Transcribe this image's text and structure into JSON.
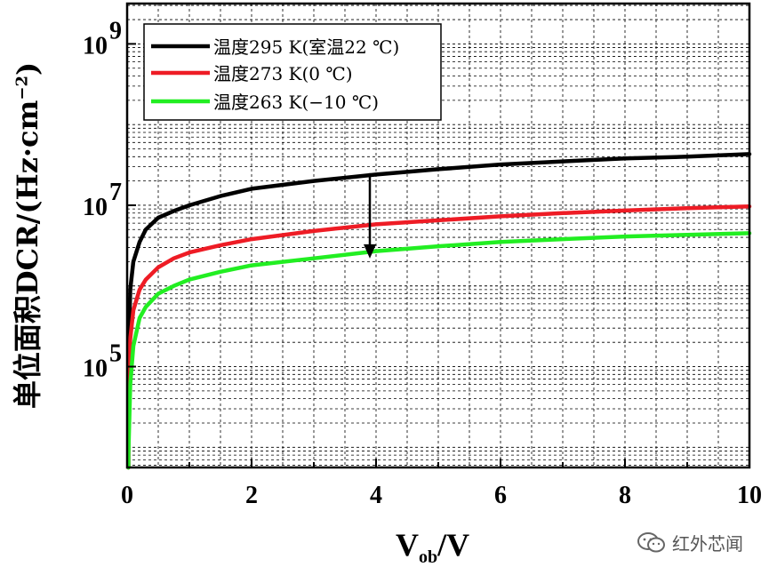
{
  "chart_data": {
    "type": "line",
    "xlabel_main": "V",
    "xlabel_sub": "ob",
    "xlabel_tail": "/V",
    "ylabel_main": "单位面积DCR/(Hz·cm",
    "ylabel_sup": "−2",
    "ylabel_tail": ")",
    "xlim": [
      0,
      10
    ],
    "ylim_log10": [
      3.75,
      9.5
    ],
    "x_ticks": [
      0,
      2,
      4,
      6,
      8,
      10
    ],
    "x_tick_labels": [
      "0",
      "2",
      "4",
      "6",
      "8",
      "10"
    ],
    "y_ticks": [
      {
        "base": "10",
        "exp": "5",
        "value": 100000
      },
      {
        "base": "10",
        "exp": "7",
        "value": 10000000
      },
      {
        "base": "10",
        "exp": "9",
        "value": 1000000000
      }
    ],
    "grid": true,
    "legend_position": "top-left",
    "series": [
      {
        "name": "温度295 K(室温22 ℃)",
        "color": "#000000",
        "x": [
          0.02,
          0.05,
          0.1,
          0.2,
          0.3,
          0.5,
          0.75,
          1,
          1.5,
          2,
          3,
          4,
          5,
          6,
          7,
          8,
          9,
          10
        ],
        "y": [
          100000,
          900000,
          2000000,
          3500000,
          5000000,
          7000000,
          8500000,
          10000000,
          13000000,
          16000000,
          20000000,
          24000000,
          28000000,
          32000000,
          35000000,
          38000000,
          40000000,
          43000000
        ]
      },
      {
        "name": "温度273 K(0 ℃)",
        "color": "#ee1c25",
        "x": [
          0.02,
          0.05,
          0.1,
          0.2,
          0.3,
          0.5,
          0.75,
          1,
          1.5,
          2,
          3,
          4,
          5,
          6,
          7,
          8,
          9,
          10
        ],
        "y": [
          70000,
          220000,
          500000,
          900000,
          1200000,
          1700000,
          2200000,
          2600000,
          3200000,
          3800000,
          4800000,
          5800000,
          6500000,
          7300000,
          8000000,
          8600000,
          9200000,
          9700000
        ]
      },
      {
        "name": "温度263 K(−10 ℃)",
        "color": "#22ee22",
        "x": [
          0.02,
          0.05,
          0.1,
          0.2,
          0.3,
          0.5,
          0.75,
          1,
          1.5,
          2,
          3,
          4,
          5,
          6,
          7,
          8,
          9,
          10
        ],
        "y": [
          8000,
          60000,
          180000,
          400000,
          550000,
          800000,
          1000000,
          1200000,
          1500000,
          1800000,
          2200000,
          2700000,
          3100000,
          3500000,
          3800000,
          4100000,
          4300000,
          4500000
        ]
      }
    ],
    "annotation": {
      "type": "arrow",
      "x": 3.9,
      "y_from": 25000000,
      "y_to": 2300000
    }
  },
  "watermark": {
    "text": "红外芯闻",
    "icon": "wechat-icon"
  }
}
